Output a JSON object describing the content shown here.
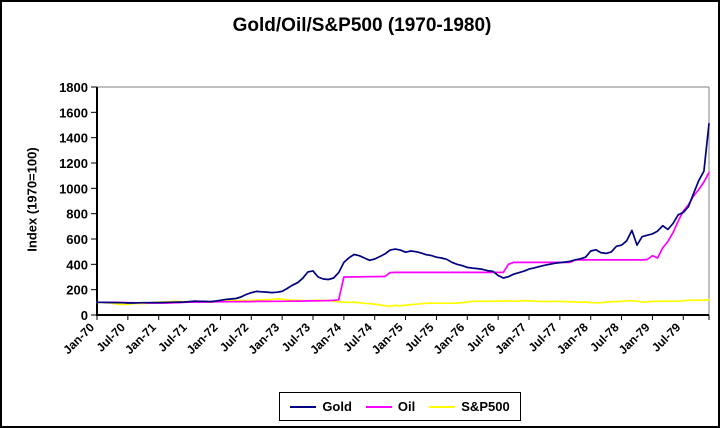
{
  "window": {
    "background": "#ffffff",
    "border_color": "#000000",
    "axis_color": "#000000",
    "plot_border_color": "#808080",
    "text_color": "#000000"
  },
  "chart_data": {
    "type": "line",
    "title": "Gold/Oil/S&P500 (1970-1980)",
    "xlabel": "",
    "ylabel": "Index (1970=100)",
    "ylim": [
      0,
      1800
    ],
    "y_ticks": [
      0,
      200,
      400,
      600,
      800,
      1000,
      1200,
      1400,
      1600,
      1800
    ],
    "x_tick_labels": [
      "Jan-70",
      "Jul-70",
      "Jan-71",
      "Jul-71",
      "Jan-72",
      "Jul-72",
      "Jan-73",
      "Jul-73",
      "Jan-74",
      "Jul-74",
      "Jan-75",
      "Jul-75",
      "Jan-76",
      "Jul-76",
      "Jan-77",
      "Jul-77",
      "Jan-78",
      "Jul-78",
      "Jan-79",
      "Jul-79"
    ],
    "x_unit": "monthly, Jan-1970 to Dec-1979",
    "grid": false,
    "legend_position": "bottom",
    "series": [
      {
        "name": "Gold",
        "color": "#000080",
        "values": [
          100,
          100,
          99,
          99,
          98,
          97,
          95,
          95,
          96,
          97,
          97,
          98,
          98,
          99,
          100,
          101,
          102,
          103,
          106,
          110,
          108,
          107,
          106,
          110,
          116,
          122,
          126,
          130,
          142,
          162,
          176,
          186,
          183,
          181,
          177,
          180,
          186,
          210,
          235,
          255,
          290,
          340,
          348,
          300,
          284,
          280,
          292,
          335,
          415,
          452,
          478,
          468,
          450,
          432,
          442,
          462,
          482,
          512,
          520,
          512,
          496,
          505,
          500,
          490,
          476,
          470,
          456,
          450,
          440,
          416,
          400,
          390,
          376,
          370,
          366,
          360,
          350,
          344,
          312,
          292,
          302,
          322,
          334,
          346,
          362,
          372,
          382,
          392,
          400,
          408,
          414,
          418,
          424,
          436,
          444,
          456,
          505,
          515,
          492,
          486,
          498,
          542,
          552,
          586,
          668,
          552,
          618,
          630,
          640,
          662,
          705,
          675,
          722,
          790,
          810,
          855,
          960,
          1060,
          1135,
          1510
        ]
      },
      {
        "name": "Oil",
        "color": "#FF00FF",
        "values": [
          100,
          100,
          100,
          100,
          99,
          98,
          97,
          97,
          96,
          96,
          95,
          95,
          95,
          95,
          95,
          96,
          98,
          100,
          102,
          102,
          102,
          103,
          103,
          104,
          104,
          104,
          105,
          105,
          106,
          106,
          106,
          107,
          107,
          107,
          108,
          108,
          108,
          109,
          109,
          110,
          110,
          111,
          111,
          112,
          113,
          114,
          116,
          120,
          300,
          300,
          301,
          301,
          302,
          302,
          303,
          304,
          304,
          335,
          336,
          336,
          336,
          336,
          336,
          336,
          336,
          336,
          336,
          336,
          336,
          336,
          336,
          336,
          336,
          336,
          336,
          336,
          336,
          336,
          336,
          336,
          400,
          415,
          415,
          415,
          415,
          415,
          415,
          415,
          415,
          415,
          415,
          415,
          415,
          435,
          435,
          435,
          435,
          435,
          435,
          435,
          435,
          435,
          435,
          435,
          435,
          435,
          435,
          438,
          468,
          450,
          530,
          580,
          650,
          740,
          820,
          870,
          940,
          990,
          1050,
          1125
        ]
      },
      {
        "name": "S&P500",
        "color": "#FFFF00",
        "values": [
          100,
          97,
          98,
          92,
          86,
          83,
          85,
          89,
          92,
          91,
          93,
          98,
          102,
          103,
          105,
          107,
          106,
          105,
          104,
          106,
          105,
          103,
          102,
          106,
          110,
          112,
          113,
          114,
          115,
          114,
          116,
          118,
          119,
          120,
          124,
          127,
          125,
          120,
          118,
          117,
          114,
          112,
          115,
          117,
          113,
          116,
          110,
          104,
          102,
          100,
          102,
          97,
          92,
          90,
          86,
          80,
          73,
          70,
          76,
          72,
          78,
          82,
          85,
          89,
          92,
          94,
          93,
          93,
          92,
          93,
          95,
          97,
          103,
          107,
          108,
          109,
          107,
          109,
          110,
          110,
          112,
          110,
          108,
          114,
          111,
          109,
          108,
          107,
          106,
          108,
          107,
          106,
          105,
          103,
          102,
          103,
          98,
          96,
          97,
          102,
          105,
          106,
          107,
          112,
          113,
          110,
          102,
          104,
          108,
          107,
          109,
          110,
          109,
          110,
          112,
          116,
          118,
          116,
          115,
          121
        ]
      }
    ]
  }
}
